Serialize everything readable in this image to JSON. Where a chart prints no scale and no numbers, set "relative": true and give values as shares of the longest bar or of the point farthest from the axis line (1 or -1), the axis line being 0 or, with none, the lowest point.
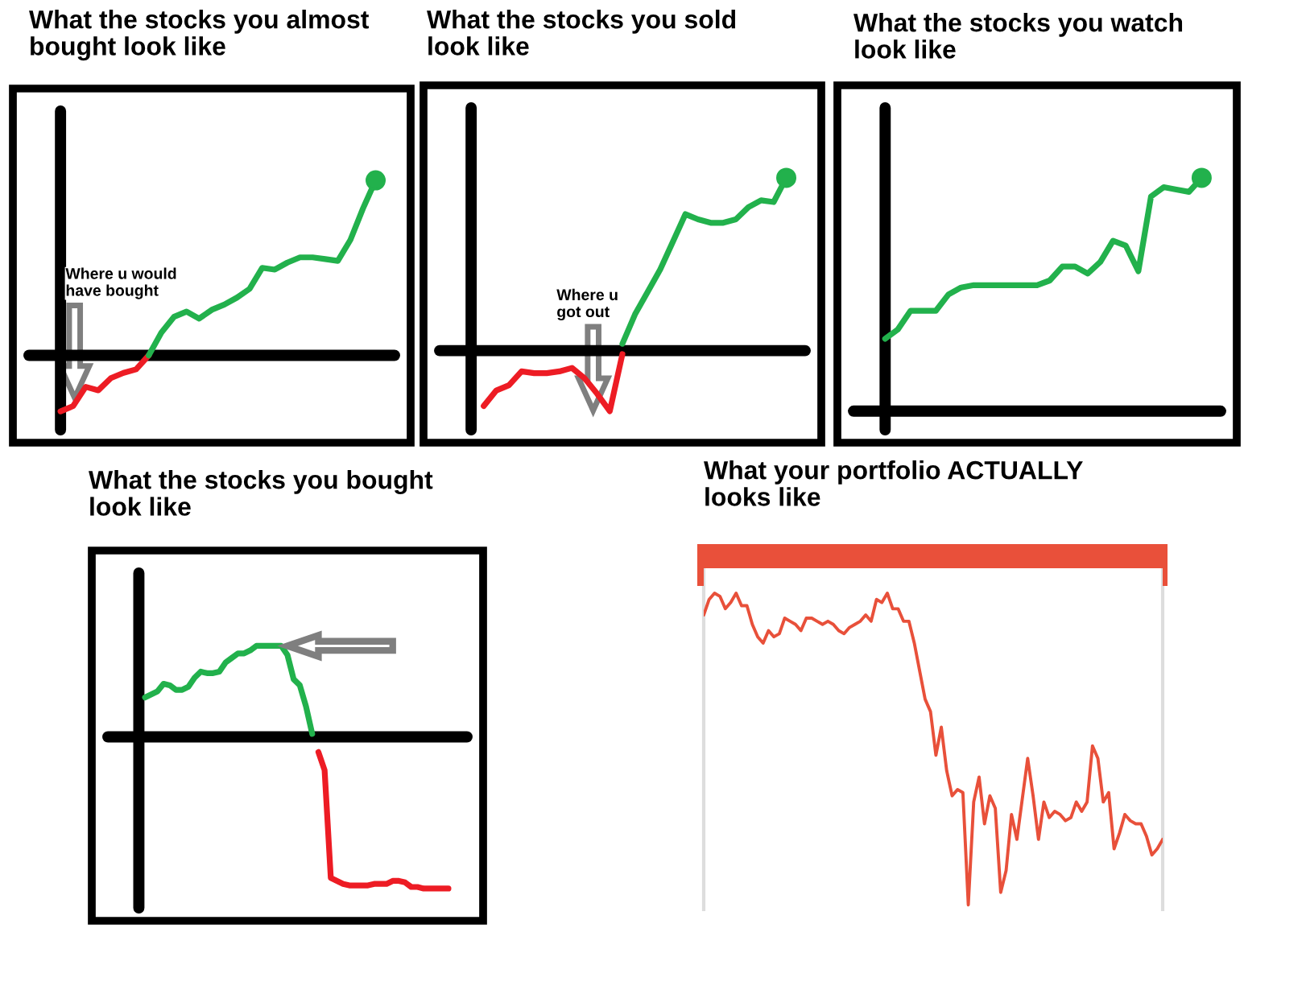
{
  "chart_data": [
    {
      "type": "line",
      "title": "What the stocks you almost\nbought look like",
      "relative": true,
      "tick_labels": false,
      "annotations": [
        "Where u would\nhave bought"
      ],
      "categories": [
        null,
        null,
        null,
        null,
        null,
        null,
        null,
        null,
        null,
        null,
        null,
        null,
        null,
        null,
        null,
        null,
        null,
        null,
        null,
        null,
        null,
        null,
        null,
        null,
        null,
        null
      ],
      "series": [
        {
          "color": "#ed1c24",
          "values": [
            -0.32,
            -0.29,
            -0.18,
            -0.2,
            -0.13,
            -0.1,
            -0.08,
            0,
            null,
            null,
            null,
            null,
            null,
            null,
            null,
            null,
            null,
            null,
            null,
            null,
            null,
            null,
            null,
            null,
            null,
            null
          ]
        },
        {
          "color": "#22b14c",
          "values": [
            null,
            null,
            null,
            null,
            null,
            null,
            null,
            0,
            0.13,
            0.22,
            0.25,
            0.21,
            0.26,
            0.29,
            0.33,
            0.38,
            0.5,
            0.49,
            0.53,
            0.56,
            0.56,
            0.55,
            0.54,
            0.66,
            0.84,
            1
          ]
        }
      ]
    },
    {
      "type": "line",
      "title": "What the stocks you sold\nlook like",
      "relative": true,
      "tick_labels": false,
      "annotations": [
        "Where u\ngot out"
      ],
      "categories": [
        null,
        null,
        null,
        null,
        null,
        null,
        null,
        null,
        null,
        null,
        null,
        null,
        null,
        null,
        null,
        null,
        null,
        null,
        null,
        null,
        null,
        null,
        null,
        null,
        null,
        null
      ],
      "series": [
        {
          "color": "#ed1c24",
          "values": [
            null,
            -0.32,
            -0.23,
            -0.2,
            -0.12,
            -0.13,
            -0.13,
            -0.12,
            -0.1,
            -0.16,
            -0.25,
            -0.35,
            -0.02,
            null,
            null,
            null,
            null,
            null,
            null,
            null,
            null,
            null,
            null,
            null,
            null,
            null
          ]
        },
        {
          "color": "#22b14c",
          "values": [
            null,
            null,
            null,
            null,
            null,
            null,
            null,
            null,
            null,
            null,
            null,
            null,
            0.04,
            0.21,
            0.34,
            0.47,
            0.63,
            0.79,
            0.76,
            0.74,
            0.74,
            0.76,
            0.83,
            0.87,
            0.86,
            1
          ]
        }
      ]
    },
    {
      "type": "line",
      "title": "What the stocks you watch\nlook like",
      "relative": true,
      "tick_labels": false,
      "categories": [
        null,
        null,
        null,
        null,
        null,
        null,
        null,
        null,
        null,
        null,
        null,
        null,
        null,
        null,
        null,
        null,
        null,
        null,
        null,
        null,
        null,
        null,
        null,
        null,
        null,
        null
      ],
      "series": [
        {
          "color": "#22b14c",
          "values": [
            0.31,
            0.35,
            0.43,
            0.43,
            0.43,
            0.5,
            0.53,
            0.54,
            0.54,
            0.54,
            0.54,
            0.54,
            0.54,
            0.56,
            0.62,
            0.62,
            0.59,
            0.64,
            0.73,
            0.71,
            0.6,
            0.92,
            0.96,
            0.95,
            0.94,
            1
          ]
        }
      ]
    },
    {
      "type": "line",
      "title": "What the stocks you bought\nlook like",
      "relative": true,
      "tick_labels": false,
      "categories": [
        null,
        null,
        null,
        null,
        null,
        null,
        null,
        null,
        null,
        null,
        null,
        null,
        null,
        null,
        null,
        null,
        null,
        null,
        null,
        null,
        null,
        null,
        null,
        null,
        null,
        null,
        null,
        null,
        null,
        null,
        null,
        null,
        null,
        null,
        null,
        null,
        null,
        null,
        null,
        null,
        null,
        null,
        null,
        null,
        null,
        null,
        null,
        null,
        null,
        null,
        null
      ],
      "series": [
        {
          "color": "#22b14c",
          "values": [
            null,
            0.26,
            0.28,
            0.3,
            0.35,
            0.34,
            0.31,
            0.31,
            0.33,
            0.39,
            0.43,
            0.42,
            0.42,
            0.43,
            0.49,
            0.52,
            0.55,
            0.55,
            0.57,
            0.6,
            0.6,
            0.6,
            0.6,
            0.6,
            0.54,
            0.38,
            0.34,
            0.2,
            0.02,
            null,
            null,
            null,
            null,
            null,
            null,
            null,
            null,
            null,
            null,
            null,
            null,
            null,
            null,
            null,
            null,
            null,
            null,
            null,
            null,
            null,
            null
          ]
        },
        {
          "color": "#ed1c24",
          "values": [
            null,
            null,
            null,
            null,
            null,
            null,
            null,
            null,
            null,
            null,
            null,
            null,
            null,
            null,
            null,
            null,
            null,
            null,
            null,
            null,
            null,
            null,
            null,
            null,
            null,
            null,
            null,
            null,
            null,
            -0.1,
            -0.22,
            -0.93,
            -0.95,
            -0.97,
            -0.98,
            -0.98,
            -0.98,
            -0.98,
            -0.97,
            -0.97,
            -0.97,
            -0.95,
            -0.95,
            -0.96,
            -0.99,
            -0.99,
            -1,
            -1,
            -1,
            -1,
            -1
          ]
        }
      ]
    },
    {
      "type": "line",
      "title": "What your portfolio ACTUALLY\nlooks like",
      "relative": true,
      "tick_labels": false,
      "categories": [
        null,
        null,
        null,
        null,
        null,
        null,
        null,
        null,
        null,
        null,
        null,
        null,
        null,
        null,
        null,
        null,
        null,
        null,
        null,
        null,
        null,
        null,
        null,
        null,
        null,
        null,
        null,
        null,
        null,
        null,
        null,
        null,
        null,
        null,
        null,
        null,
        null,
        null,
        null,
        null,
        null,
        null,
        null,
        null,
        null,
        null,
        null,
        null,
        null,
        null,
        null,
        null,
        null,
        null,
        null,
        null,
        null,
        null,
        null,
        null,
        null,
        null,
        null,
        null,
        null,
        null,
        null,
        null,
        null,
        null,
        null,
        null,
        null,
        null,
        null,
        null,
        null,
        null,
        null,
        null,
        null,
        null,
        null,
        null,
        null,
        null
      ],
      "series": [
        {
          "color": "#e8503a",
          "values": [
            0.93,
            0.98,
            1.0,
            0.99,
            0.95,
            0.97,
            1.0,
            0.96,
            0.96,
            0.9,
            0.86,
            0.84,
            0.88,
            0.86,
            0.87,
            0.92,
            0.91,
            0.9,
            0.88,
            0.92,
            0.92,
            0.91,
            0.9,
            0.91,
            0.9,
            0.88,
            0.87,
            0.89,
            0.9,
            0.91,
            0.93,
            0.91,
            0.98,
            0.97,
            1.0,
            0.95,
            0.95,
            0.91,
            0.91,
            0.84,
            0.75,
            0.66,
            0.62,
            0.48,
            0.57,
            0.43,
            0.35,
            0.37,
            0.36,
            0,
            0.33,
            0.41,
            0.26,
            0.35,
            0.31,
            0.04,
            0.11,
            0.29,
            0.21,
            0.34,
            0.47,
            0.35,
            0.21,
            0.33,
            0.28,
            0.3,
            0.29,
            0.27,
            0.28,
            0.33,
            0.3,
            0.33,
            0.51,
            0.47,
            0.33,
            0.36,
            0.18,
            0.23,
            0.29,
            0.27,
            0.26,
            0.26,
            0.22,
            0.16,
            0.18,
            0.21
          ]
        }
      ]
    }
  ]
}
